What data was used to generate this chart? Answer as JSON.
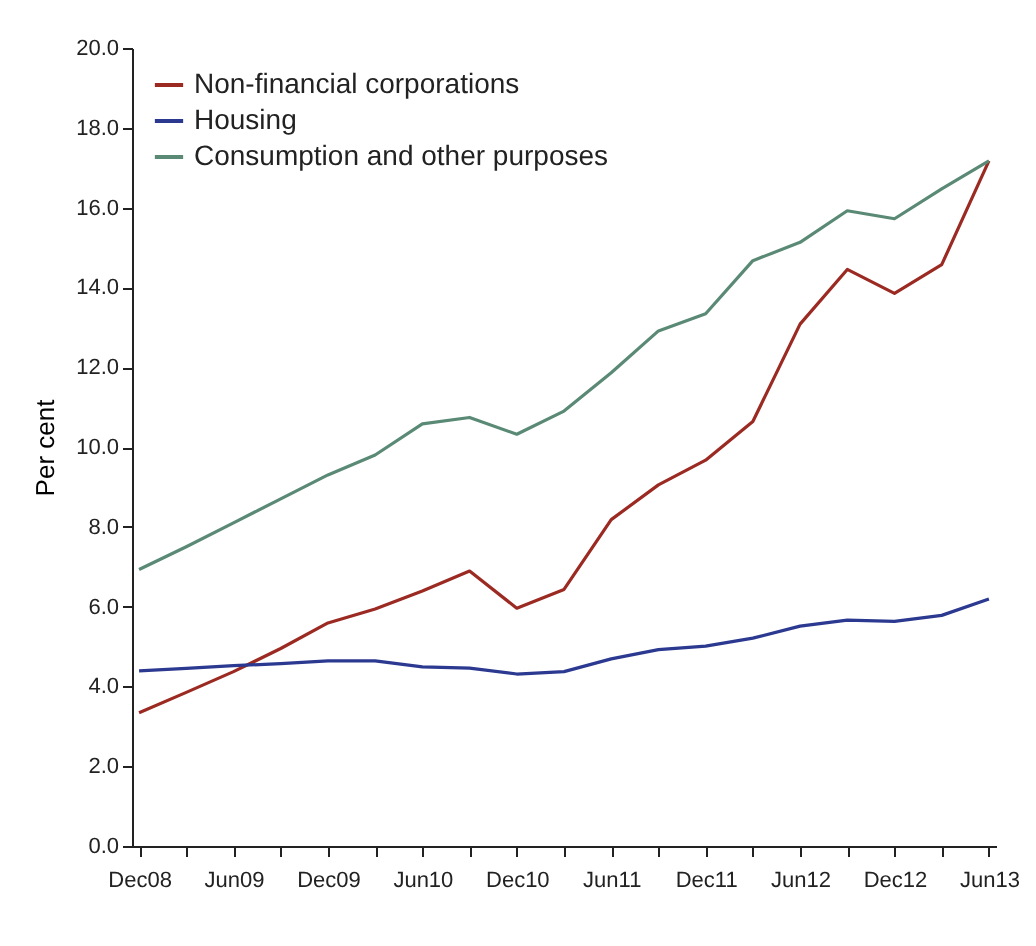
{
  "chart_data": {
    "type": "line",
    "ylabel": "Per cent",
    "categories": [
      "Dec08",
      null,
      "Jun09",
      null,
      "Dec09",
      null,
      "Jun10",
      null,
      "Dec10",
      null,
      "Jun11",
      null,
      "Dec11",
      null,
      "Jun12",
      null,
      "Dec12",
      null,
      "Jun13"
    ],
    "series": [
      {
        "name": "Non-financial corporations",
        "color": "#9b2a22",
        "values": [
          3.34,
          3.85,
          4.37,
          4.95,
          5.59,
          5.94,
          6.39,
          6.89,
          5.96,
          6.43,
          8.18,
          9.05,
          9.67,
          10.64,
          13.08,
          14.45,
          13.85,
          14.57,
          17.17
        ]
      },
      {
        "name": "Housing",
        "color": "#2b3990",
        "values": [
          4.39,
          4.45,
          4.52,
          4.57,
          4.64,
          4.64,
          4.49,
          4.46,
          4.31,
          4.37,
          4.69,
          4.92,
          5.01,
          5.21,
          5.51,
          5.66,
          5.63,
          5.78,
          6.19
        ]
      },
      {
        "name": "Consumption and other purposes",
        "color": "#5a8a76",
        "values": [
          6.93,
          7.5,
          8.1,
          8.7,
          9.3,
          9.8,
          10.58,
          10.74,
          10.32,
          10.9,
          11.86,
          12.91,
          13.34,
          14.67,
          15.13,
          15.92,
          15.72,
          16.47,
          17.17
        ]
      }
    ],
    "ylim": [
      0,
      20
    ],
    "yticks": [
      {
        "value": 0,
        "label": "0.0"
      },
      {
        "value": 2,
        "label": "2.0"
      },
      {
        "value": 4,
        "label": "4.0"
      },
      {
        "value": 6,
        "label": "6.0"
      },
      {
        "value": 8,
        "label": "8.0"
      },
      {
        "value": 10,
        "label": "10.0"
      },
      {
        "value": 12,
        "label": "12.0"
      },
      {
        "value": 14,
        "label": "14.0"
      },
      {
        "value": 16,
        "label": "16.0"
      },
      {
        "value": 18,
        "label": "18.0"
      },
      {
        "value": 20,
        "label": "20.0"
      }
    ],
    "legend": "top left",
    "grid": false,
    "marker": "none",
    "line_style": "solid"
  }
}
